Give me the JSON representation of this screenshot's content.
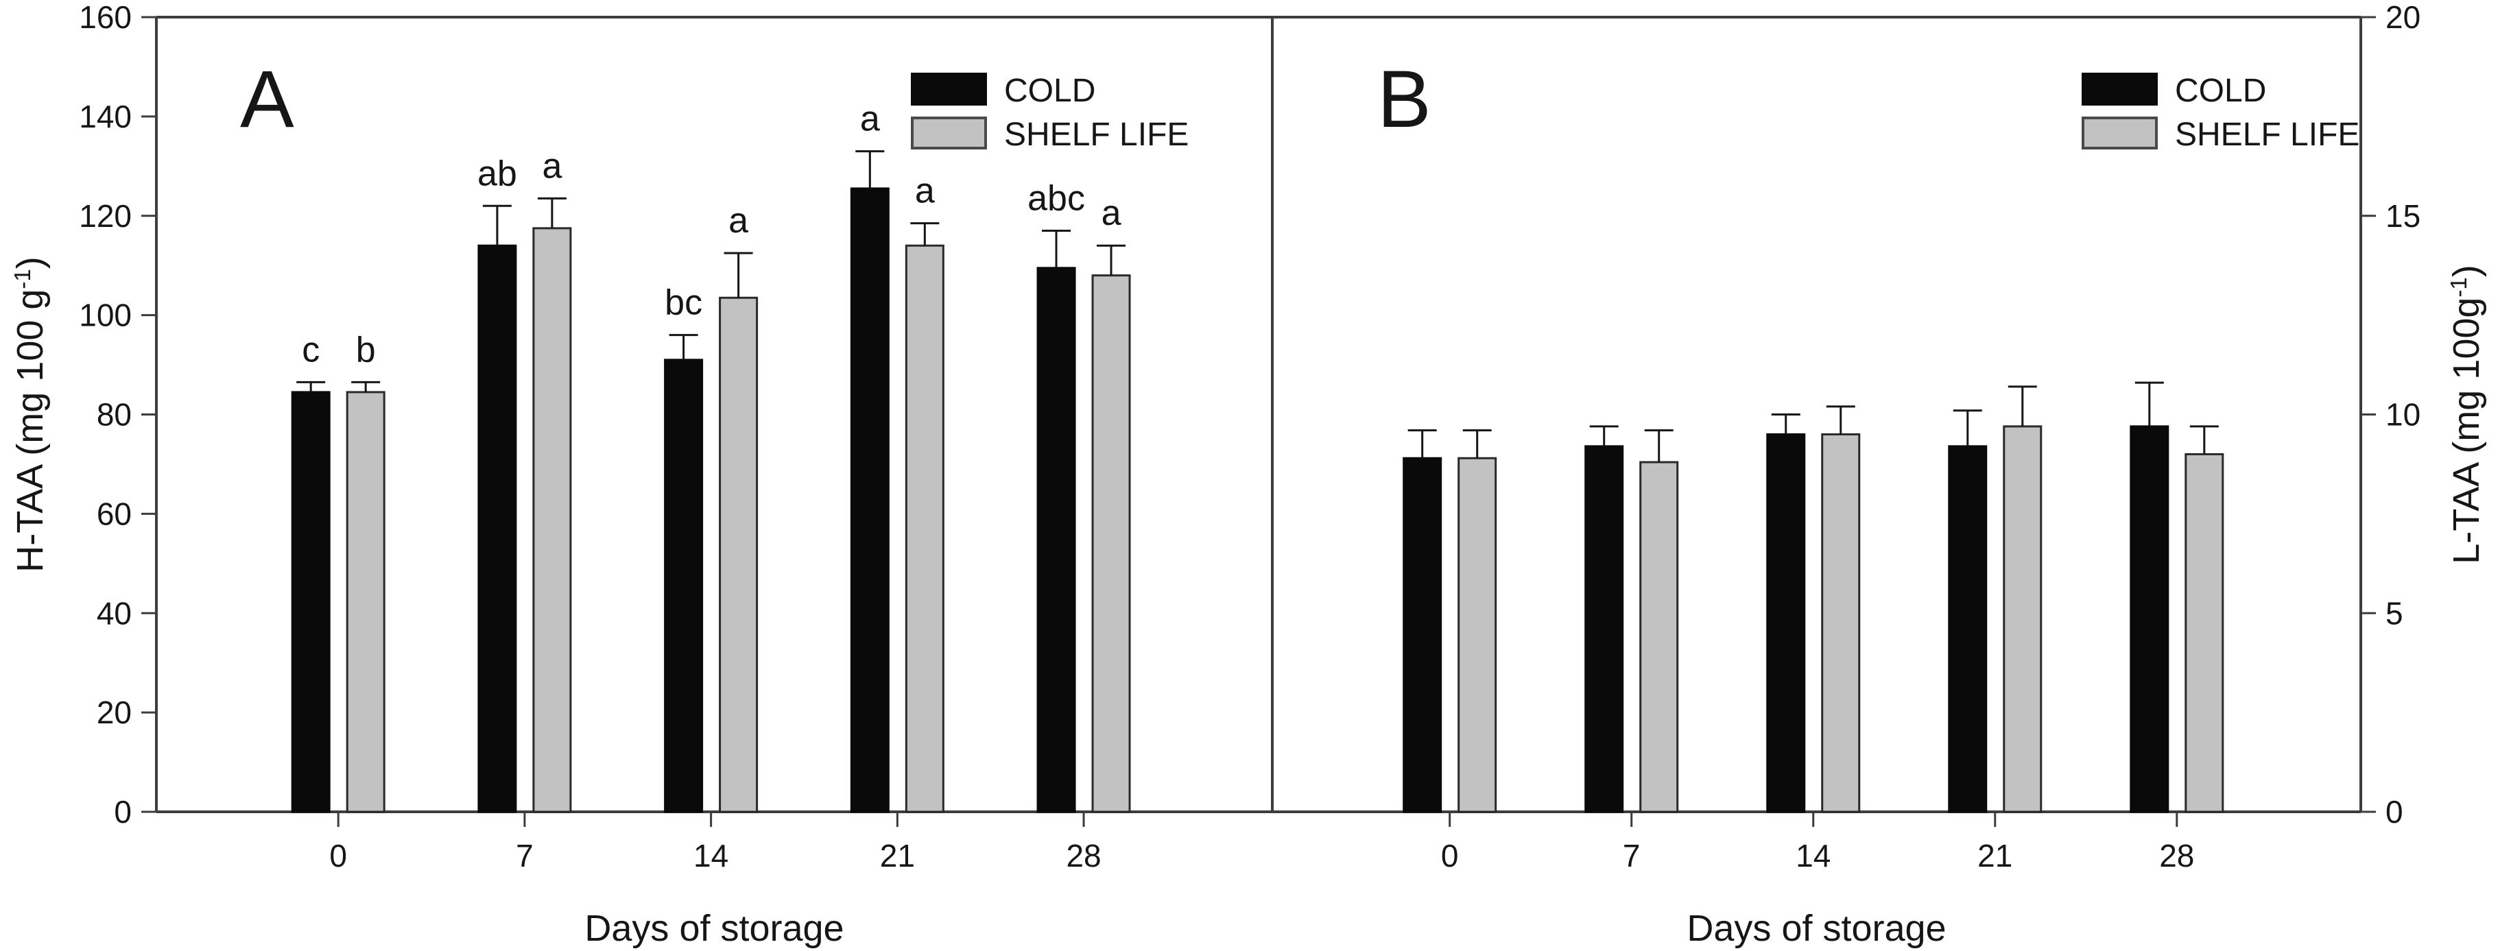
{
  "figure": {
    "background": "#ffffff",
    "frame_color": "#3d3d3d",
    "text_color": "#161616",
    "xlabel": "Days of storage",
    "categories": [
      "0",
      "7",
      "14",
      "21",
      "28"
    ],
    "legend": {
      "items": [
        {
          "label": "COLD",
          "fill": "#0a0a0a",
          "stroke": "#0a0a0a"
        },
        {
          "label": "SHELF LIFE",
          "fill": "#c2c2c2",
          "stroke": "#4a4a4a"
        }
      ],
      "position": "upper-right"
    }
  },
  "chart_data": [
    {
      "type": "bar",
      "panel_label": "A",
      "ylabel": "H-TAA (mg 100 g⁻¹)",
      "yaxis_side": "left",
      "ylim": [
        0,
        160
      ],
      "yticks": [
        0,
        20,
        40,
        60,
        80,
        100,
        120,
        140,
        160
      ],
      "xlabel": "Days of storage",
      "categories": [
        "0",
        "7",
        "14",
        "21",
        "28"
      ],
      "grid": false,
      "legend_position": "upper-right",
      "series": [
        {
          "name": "COLD",
          "fill": "#0a0a0a",
          "stroke": "#0a0a0a",
          "values": [
            84.5,
            114,
            91,
            125.5,
            109.5
          ],
          "errors": [
            2,
            8,
            5,
            7.5,
            7.5
          ],
          "letters": [
            "c",
            "ab",
            "bc",
            "a",
            "abc"
          ]
        },
        {
          "name": "SHELF LIFE",
          "fill": "#c2c2c2",
          "stroke": "#2a2a2a",
          "values": [
            84.5,
            117.5,
            103.5,
            114,
            108
          ],
          "errors": [
            2,
            6,
            9,
            4.5,
            6
          ],
          "letters": [
            "b",
            "a",
            "a",
            "a",
            "a"
          ]
        }
      ]
    },
    {
      "type": "bar",
      "panel_label": "B",
      "ylabel": "L-TAA (mg 100g⁻¹)",
      "yaxis_side": "right",
      "ylim": [
        0,
        20
      ],
      "yticks": [
        0,
        5,
        10,
        15,
        20
      ],
      "xlabel": "Days of storage",
      "categories": [
        "0",
        "7",
        "14",
        "21",
        "28"
      ],
      "grid": false,
      "legend_position": "upper-right",
      "series": [
        {
          "name": "COLD",
          "fill": "#0a0a0a",
          "stroke": "#0a0a0a",
          "values": [
            8.9,
            9.2,
            9.5,
            9.2,
            9.7
          ],
          "errors": [
            0.7,
            0.5,
            0.5,
            0.9,
            1.1
          ],
          "letters": [
            "",
            "",
            "",
            "",
            ""
          ]
        },
        {
          "name": "SHELF LIFE",
          "fill": "#c2c2c2",
          "stroke": "#2a2a2a",
          "values": [
            8.9,
            8.8,
            9.5,
            9.7,
            9.0
          ],
          "errors": [
            0.7,
            0.8,
            0.7,
            1.0,
            0.7
          ],
          "letters": [
            "",
            "",
            "",
            "",
            ""
          ]
        }
      ]
    }
  ]
}
